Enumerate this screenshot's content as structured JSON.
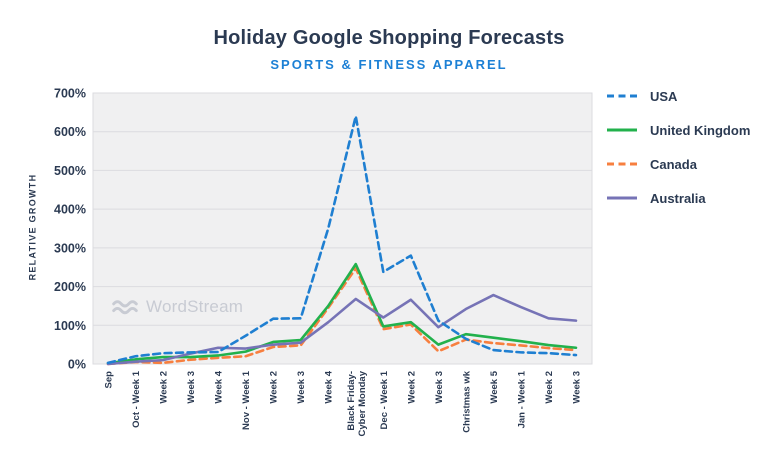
{
  "header": {
    "title": "Holiday Google Shopping Forecasts",
    "subtitle": "SPORTS & FITNESS APPAREL"
  },
  "watermark": {
    "icon": "double-wave-icon",
    "label": "WordStream"
  },
  "colors": {
    "title_navy": "#2B3A52",
    "subtitle_blue": "#1C80D5",
    "axis_text": "#2B3A52",
    "plot_bg": "#F0F0F1",
    "gridline": "#DBDBDF",
    "watermark_gray": "#C8CBD3",
    "usa_blue": "#1F7FD1",
    "uk_green": "#22B14C",
    "canada_orange": "#F77F3F",
    "australia_purple": "#7673B6"
  },
  "chart_data": {
    "type": "line",
    "title": "Holiday Google Shopping Forecasts",
    "subtitle": "SPORTS & FITNESS APPAREL",
    "xlabel": "",
    "ylabel": "RELATIVE GROWTH",
    "ylim": [
      0,
      700
    ],
    "yticks": [
      0,
      100,
      200,
      300,
      400,
      500,
      600,
      700
    ],
    "ytick_suffix": "%",
    "grid": true,
    "legend_position": "right",
    "categories": [
      "Sep",
      "Oct - Week 1",
      "Week 2",
      "Week 3",
      "Week 4",
      "Nov - Week 1",
      "Week 2",
      "Week 3",
      "Week 4",
      "Black Friday-\nCyber Monday",
      "Dec - Week 1",
      "Week 2",
      "Week 3",
      "Christmas wk",
      "Week 5",
      "Jan - Week 1",
      "Week 2",
      "Week 3"
    ],
    "series": [
      {
        "name": "USA",
        "color": "#1F7FD1",
        "style": "dashed",
        "values": [
          3,
          20,
          28,
          30,
          31,
          73,
          117,
          118,
          350,
          640,
          238,
          280,
          112,
          65,
          36,
          30,
          28,
          23
        ]
      },
      {
        "name": "United Kingdom",
        "color": "#22B14C",
        "style": "solid",
        "values": [
          2,
          12,
          18,
          18,
          22,
          32,
          57,
          62,
          150,
          258,
          97,
          108,
          50,
          77,
          68,
          59,
          49,
          42
        ]
      },
      {
        "name": "Canada",
        "color": "#F77F3F",
        "style": "dashed",
        "values": [
          0,
          5,
          3,
          11,
          16,
          20,
          44,
          48,
          145,
          247,
          90,
          102,
          33,
          63,
          54,
          48,
          41,
          36
        ]
      },
      {
        "name": "Australia",
        "color": "#7673B6",
        "style": "solid",
        "values": [
          0,
          6,
          10,
          27,
          42,
          40,
          50,
          55,
          108,
          168,
          120,
          166,
          95,
          142,
          178,
          147,
          118,
          112
        ]
      }
    ]
  }
}
